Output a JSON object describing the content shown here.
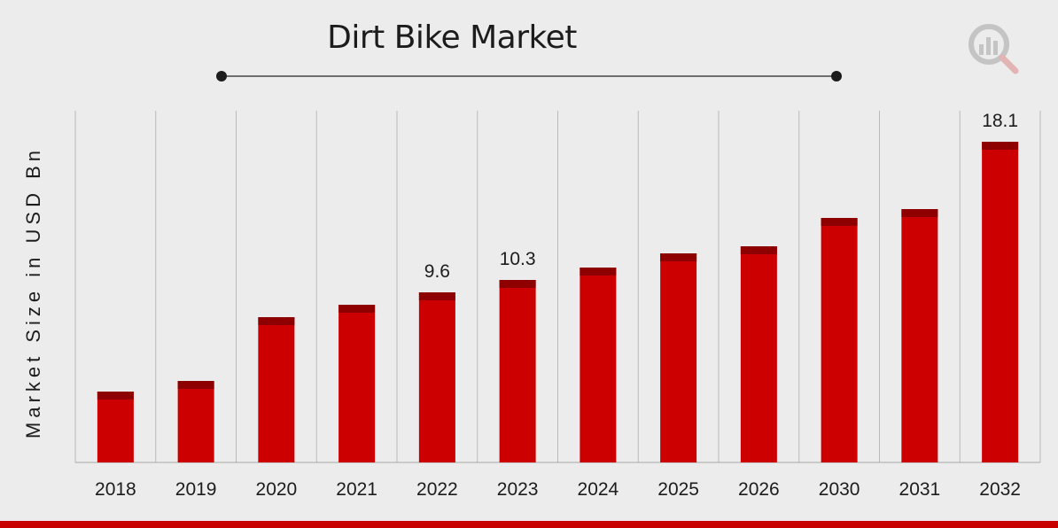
{
  "title": "Dirt Bike Market",
  "logo_icon": "magnifier-chart-icon",
  "colors": {
    "bar": "#cc0000",
    "bar_cap": "#8e0000",
    "title_rule": "#6e6e6e",
    "bottom_band": "#c80000"
  },
  "chart_data": {
    "type": "bar",
    "title": "Dirt Bike Market",
    "xlabel": "",
    "ylabel": "Market Size in USD Bn",
    "categories": [
      "2018",
      "2019",
      "2020",
      "2021",
      "2022",
      "2023",
      "2024",
      "2025",
      "2026",
      "2030",
      "2031",
      "2032"
    ],
    "values": [
      4.0,
      4.6,
      8.2,
      8.9,
      9.6,
      10.3,
      11.0,
      11.8,
      12.2,
      13.8,
      14.3,
      18.1
    ],
    "data_labels": [
      {
        "category": "2022",
        "text": "9.6"
      },
      {
        "category": "2023",
        "text": "10.3"
      },
      {
        "category": "2032",
        "text": "18.1"
      }
    ],
    "ylim": [
      0,
      20
    ],
    "grid": "vertical",
    "legend": "none"
  }
}
